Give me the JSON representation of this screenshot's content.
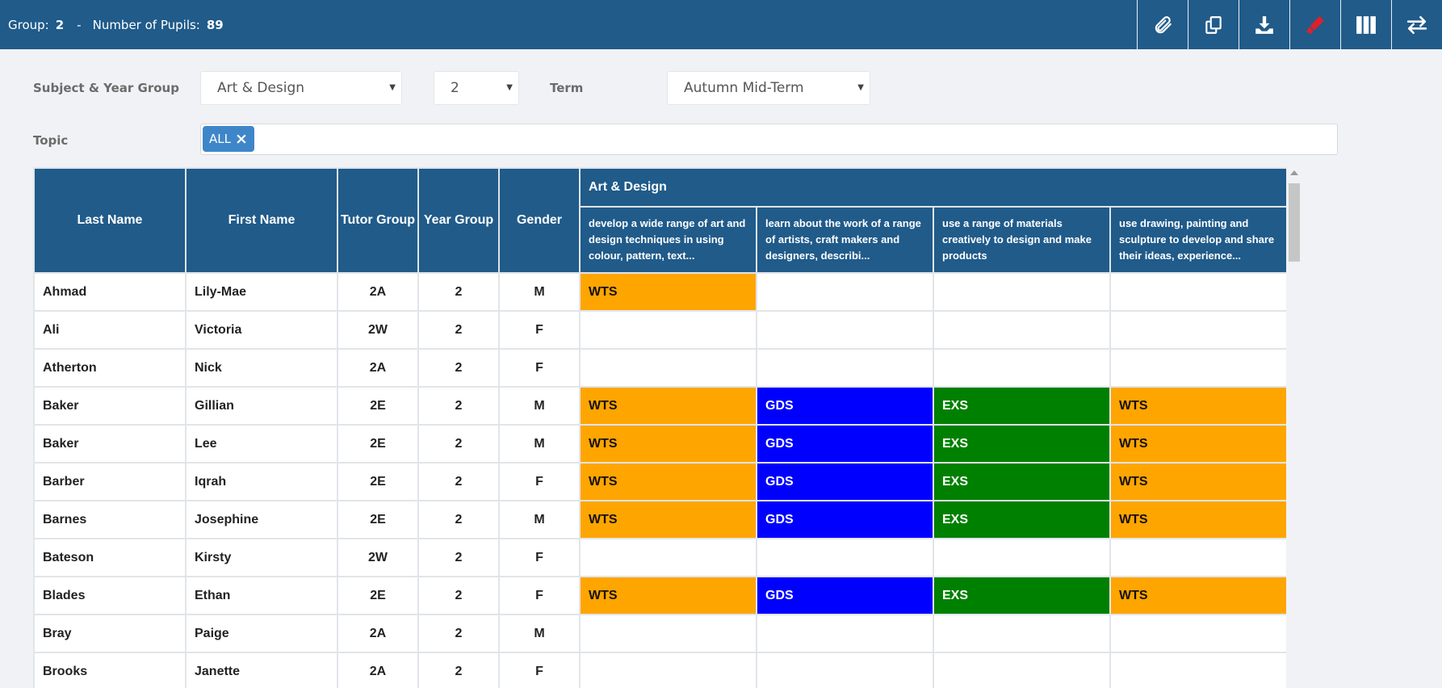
{
  "topbar": {
    "group_label": "Group:",
    "group_value": "2",
    "separator": "-",
    "pupils_label": "Number of Pupils:",
    "pupils_value": "89",
    "tools": [
      {
        "icon": "paperclip-icon"
      },
      {
        "icon": "copy-icon"
      },
      {
        "icon": "download-icon"
      },
      {
        "icon": "highlighter-icon",
        "color": "#e0202a"
      },
      {
        "icon": "columns-icon"
      },
      {
        "icon": "swap-arrows-icon"
      }
    ]
  },
  "filters": {
    "subject_label": "Subject & Year Group",
    "subject_value": "Art & Design",
    "year_value": "2",
    "term_label": "Term",
    "term_value": "Autumn Mid-Term",
    "topic_label": "Topic",
    "topic_tag": "ALL"
  },
  "table": {
    "headers": {
      "last_name": "Last Name",
      "first_name": "First Name",
      "tutor_group": "Tutor Group",
      "year_group": "Year Group",
      "gender": "Gender",
      "subject": "Art & Design",
      "objectives": [
        "develop a wide range of art and design techniques in using colour, pattern, text...",
        "learn about the work of a range of artists, craft makers and designers, describi...",
        "use a range of materials creatively to design and make products",
        "use drawing, painting and sculpture to develop and share their ideas, experience..."
      ]
    },
    "rows": [
      {
        "last": "Ahmad",
        "first": "Lily-Mae",
        "tutor": "2A",
        "year": "2",
        "gender": "M",
        "grades": [
          "WTS",
          "",
          "",
          ""
        ]
      },
      {
        "last": "Ali",
        "first": "Victoria",
        "tutor": "2W",
        "year": "2",
        "gender": "F",
        "grades": [
          "",
          "",
          "",
          ""
        ]
      },
      {
        "last": "Atherton",
        "first": "Nick",
        "tutor": "2A",
        "year": "2",
        "gender": "F",
        "grades": [
          "",
          "",
          "",
          ""
        ]
      },
      {
        "last": "Baker",
        "first": "Gillian",
        "tutor": "2E",
        "year": "2",
        "gender": "M",
        "grades": [
          "WTS",
          "GDS",
          "EXS",
          "WTS"
        ]
      },
      {
        "last": "Baker",
        "first": "Lee",
        "tutor": "2E",
        "year": "2",
        "gender": "M",
        "grades": [
          "WTS",
          "GDS",
          "EXS",
          "WTS"
        ]
      },
      {
        "last": "Barber",
        "first": "Iqrah",
        "tutor": "2E",
        "year": "2",
        "gender": "F",
        "grades": [
          "WTS",
          "GDS",
          "EXS",
          "WTS"
        ]
      },
      {
        "last": "Barnes",
        "first": "Josephine",
        "tutor": "2E",
        "year": "2",
        "gender": "M",
        "grades": [
          "WTS",
          "GDS",
          "EXS",
          "WTS"
        ]
      },
      {
        "last": "Bateson",
        "first": "Kirsty",
        "tutor": "2W",
        "year": "2",
        "gender": "F",
        "grades": [
          "",
          "",
          "",
          ""
        ]
      },
      {
        "last": "Blades",
        "first": "Ethan",
        "tutor": "2E",
        "year": "2",
        "gender": "F",
        "grades": [
          "WTS",
          "GDS",
          "EXS",
          "WTS"
        ]
      },
      {
        "last": "Bray",
        "first": "Paige",
        "tutor": "2A",
        "year": "2",
        "gender": "M",
        "grades": [
          "",
          "",
          "",
          ""
        ]
      },
      {
        "last": "Brooks",
        "first": "Janette",
        "tutor": "2A",
        "year": "2",
        "gender": "F",
        "grades": [
          "",
          "",
          "",
          ""
        ]
      }
    ]
  },
  "grade_colors": {
    "WTS": "#ffa500",
    "GDS": "#0000ff",
    "EXS": "#008000"
  }
}
